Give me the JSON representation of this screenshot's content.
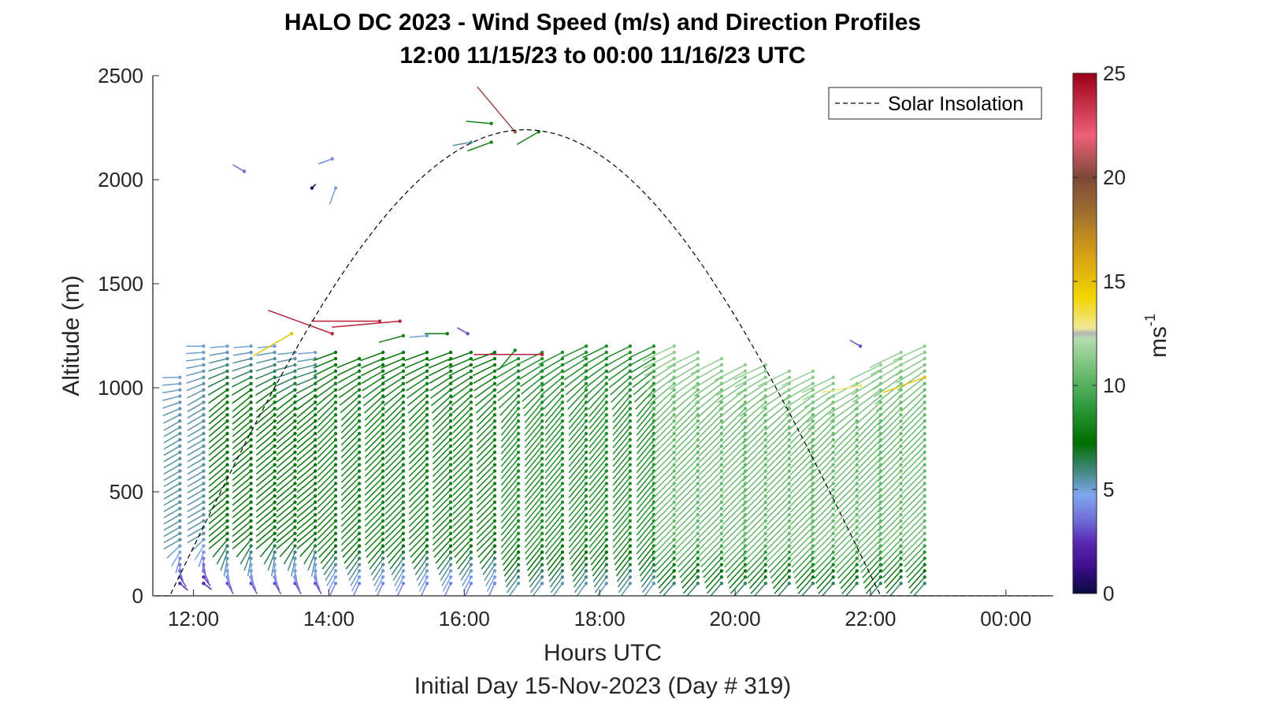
{
  "chart_data": {
    "type": "quiver",
    "title": "HALO DC 2023 - Wind Speed (m/s) and Direction Profiles",
    "subtitle": "12:00 11/15/23 to 00:00 11/16/23  UTC",
    "xlabel": "Hours UTC",
    "xlabel2": "Initial Day 15-Nov-2023 (Day # 319)",
    "ylabel": "Altitude (m)",
    "xlim": [
      11.4,
      24.7
    ],
    "ylim": [
      0,
      2500
    ],
    "xticks": [
      12,
      14,
      16,
      18,
      20,
      22,
      24
    ],
    "xtick_labels": [
      "12:00",
      "14:00",
      "16:00",
      "18:00",
      "20:00",
      "22:00",
      "00:00"
    ],
    "yticks": [
      0,
      500,
      1000,
      1500,
      2000,
      2500
    ],
    "ytick_labels": [
      "0",
      "500",
      "1000",
      "1500",
      "2000",
      "2500"
    ],
    "colorbar": {
      "label": "ms",
      "label_exponent": "-1",
      "range": [
        0,
        25
      ],
      "ticks": [
        0,
        5,
        10,
        15,
        20,
        25
      ],
      "tick_labels": [
        "0",
        "5",
        "10",
        "15",
        "20",
        "25"
      ]
    },
    "legend": {
      "label": "Solar Insolation",
      "location": "top-right",
      "style": "dashed"
    },
    "profile_times": [
      11.8,
      12.15,
      12.5,
      12.85,
      13.2,
      13.5,
      13.8,
      14.1,
      14.45,
      14.8,
      15.1,
      15.45,
      15.8,
      16.1,
      16.45,
      16.8,
      17.15,
      17.45,
      17.8,
      18.1,
      18.45,
      18.8,
      19.1,
      19.45,
      19.8,
      20.15,
      20.45,
      20.8,
      21.15,
      21.45,
      21.8,
      22.15,
      22.45,
      22.8
    ],
    "profile_tops_m": [
      1060,
      1200,
      1200,
      1200,
      1200,
      1180,
      1170,
      1170,
      1160,
      1170,
      1170,
      1170,
      1170,
      1170,
      1170,
      1160,
      1180,
      1190,
      1200,
      1210,
      1210,
      1200,
      1200,
      1180,
      1160,
      1130,
      1110,
      1090,
      1080,
      1060,
      1040,
      1120,
      1180,
      1200
    ],
    "wind_regimes": [
      {
        "t_end": 12.3,
        "alt_max": 1200,
        "low_speed": 1.5,
        "low_dir_deg": 100,
        "mid_speed": 5.5,
        "mid_dir_deg": 240,
        "top_speed": 5.0,
        "top_dir_deg": 270
      },
      {
        "t_end": 14.0,
        "alt_max": 1200,
        "low_speed": 2.0,
        "low_dir_deg": 130,
        "mid_speed": 7.5,
        "mid_dir_deg": 230,
        "top_speed": 5.0,
        "top_dir_deg": 265
      },
      {
        "t_end": 16.5,
        "alt_max": 1200,
        "low_speed": 3.0,
        "low_dir_deg": 200,
        "mid_speed": 8.0,
        "mid_dir_deg": 225,
        "top_speed": 7.5,
        "top_dir_deg": 250
      },
      {
        "t_end": 19.0,
        "alt_max": 1200,
        "low_speed": 4.5,
        "low_dir_deg": 215,
        "mid_speed": 8.5,
        "mid_dir_deg": 220,
        "top_speed": 8.5,
        "top_dir_deg": 245
      },
      {
        "t_end": 23.0,
        "alt_max": 1200,
        "low_speed": 5.0,
        "low_dir_deg": 220,
        "mid_speed": 10.5,
        "mid_dir_deg": 225,
        "top_speed": 11.5,
        "top_dir_deg": 245
      }
    ],
    "isolated_barbs": [
      {
        "t": 12.75,
        "alt": 2040,
        "speed": 3.5,
        "dir_deg": 300
      },
      {
        "t": 14.05,
        "alt": 2100,
        "speed": 4.0,
        "dir_deg": 250
      },
      {
        "t": 13.75,
        "alt": 1960,
        "speed": 0.5,
        "dir_deg": 45
      },
      {
        "t": 14.1,
        "alt": 1960,
        "speed": 5.0,
        "dir_deg": 200
      },
      {
        "t": 16.4,
        "alt": 2270,
        "speed": 8.0,
        "dir_deg": 275
      },
      {
        "t": 16.1,
        "alt": 2180,
        "speed": 5.5,
        "dir_deg": 260
      },
      {
        "t": 16.4,
        "alt": 2180,
        "speed": 8.0,
        "dir_deg": 250
      },
      {
        "t": 16.75,
        "alt": 2230,
        "speed": 20.5,
        "dir_deg": 320
      },
      {
        "t": 17.1,
        "alt": 2230,
        "speed": 8.0,
        "dir_deg": 240
      },
      {
        "t": 13.45,
        "alt": 1260,
        "speed": 15.0,
        "dir_deg": 240
      },
      {
        "t": 14.05,
        "alt": 1260,
        "speed": 24.0,
        "dir_deg": 290
      },
      {
        "t": 14.75,
        "alt": 1320,
        "speed": 24.0,
        "dir_deg": 270
      },
      {
        "t": 15.05,
        "alt": 1320,
        "speed": 24.0,
        "dir_deg": 265
      },
      {
        "t": 15.1,
        "alt": 1250,
        "speed": 8.0,
        "dir_deg": 255
      },
      {
        "t": 15.45,
        "alt": 1250,
        "speed": 5.0,
        "dir_deg": 265
      },
      {
        "t": 15.75,
        "alt": 1260,
        "speed": 7.0,
        "dir_deg": 270
      },
      {
        "t": 16.05,
        "alt": 1260,
        "speed": 3.0,
        "dir_deg": 300
      },
      {
        "t": 16.75,
        "alt": 1180,
        "speed": 8.0,
        "dir_deg": 220
      },
      {
        "t": 17.15,
        "alt": 1160,
        "speed": 24.0,
        "dir_deg": 270
      },
      {
        "t": 21.85,
        "alt": 1200,
        "speed": 3.0,
        "dir_deg": 300
      },
      {
        "t": 22.8,
        "alt": 1050,
        "speed": 15.0,
        "dir_deg": 250
      },
      {
        "t": 21.85,
        "alt": 1010,
        "speed": 13.0,
        "dir_deg": 260
      }
    ],
    "solar_insolation": {
      "sunrise_hour": 11.65,
      "sunset_hour": 22.15,
      "peak_hour": 16.9,
      "peak_value": 2240
    }
  }
}
